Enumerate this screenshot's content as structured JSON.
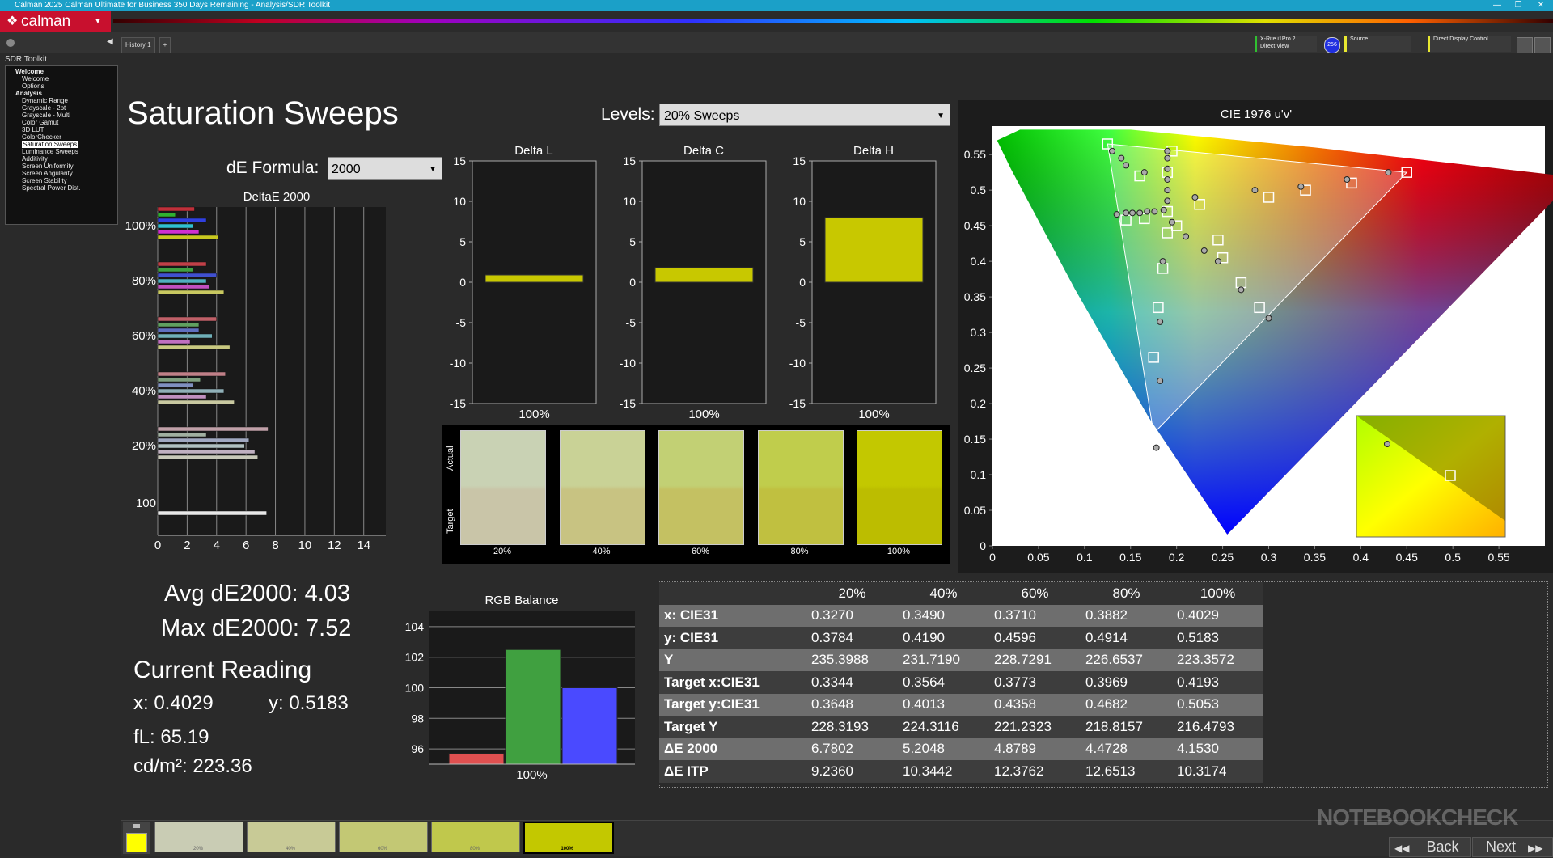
{
  "window": {
    "title": "Calman 2025 Calman Ultimate for Business 350 Days Remaining - Analysis/SDR Toolkit"
  },
  "app": {
    "logo": "calman"
  },
  "tabs": [
    "History 1"
  ],
  "devices": {
    "meter_line1": "X-Rite i1Pro 2",
    "meter_line2": "Direct View",
    "meter_badge": "256",
    "source": "Source",
    "display": "Direct Display Control"
  },
  "sidebar": {
    "header": "SDR Toolkit",
    "items": [
      {
        "label": "Welcome",
        "bold": true
      },
      {
        "label": "Welcome"
      },
      {
        "label": "Options"
      },
      {
        "label": "Analysis",
        "bold": true
      },
      {
        "label": "Dynamic Range"
      },
      {
        "label": "Grayscale - 2pt"
      },
      {
        "label": "Grayscale - Multi"
      },
      {
        "label": "Color Gamut"
      },
      {
        "label": "3D LUT"
      },
      {
        "label": "ColorChecker"
      },
      {
        "label": "Saturation Sweeps",
        "selected": true
      },
      {
        "label": "Luminance Sweeps"
      },
      {
        "label": "Additivity"
      },
      {
        "label": "Screen Uniformity"
      },
      {
        "label": "Screen Angularity"
      },
      {
        "label": "Screen Stability"
      },
      {
        "label": "Spectral Power Dist."
      }
    ]
  },
  "page": {
    "title": "Saturation Sweeps",
    "levels_label": "Levels:",
    "levels_value": "20% Sweeps",
    "formula_label": "dE Formula:",
    "formula_value": "2000",
    "avg": "Avg dE2000: 4.03",
    "max": "Max dE2000: 7.52",
    "current_reading": "Current Reading",
    "x_reading": "x: 0.4029",
    "y_reading": "y: 0.5183",
    "fl": "fL: 65.19",
    "cdm2": "cd/m²: 223.36"
  },
  "deltae_chart": {
    "title": "DeltaE 2000",
    "xticks": [
      "0",
      "2",
      "4",
      "6",
      "8",
      "10",
      "12",
      "14"
    ],
    "groups": [
      "100%",
      "80%",
      "60%",
      "40%",
      "20%",
      "100"
    ],
    "bars": [
      [
        {
          "v": 2.5,
          "c": "#c0303a"
        },
        {
          "v": 1.2,
          "c": "#30b030"
        },
        {
          "v": 3.3,
          "c": "#3040e0"
        },
        {
          "v": 2.4,
          "c": "#30c0d0"
        },
        {
          "v": 2.8,
          "c": "#d030d0"
        },
        {
          "v": 4.1,
          "c": "#c8c820"
        }
      ],
      [
        {
          "v": 3.3,
          "c": "#c04048"
        },
        {
          "v": 2.4,
          "c": "#40a040"
        },
        {
          "v": 4.0,
          "c": "#4050d0"
        },
        {
          "v": 3.3,
          "c": "#50b0c0"
        },
        {
          "v": 3.5,
          "c": "#c050c0"
        },
        {
          "v": 4.5,
          "c": "#c8c860"
        }
      ],
      [
        {
          "v": 4.0,
          "c": "#c06068"
        },
        {
          "v": 2.8,
          "c": "#60a060"
        },
        {
          "v": 2.8,
          "c": "#6070c0"
        },
        {
          "v": 3.7,
          "c": "#70b0b8"
        },
        {
          "v": 2.2,
          "c": "#c070c0"
        },
        {
          "v": 4.9,
          "c": "#c8c880"
        }
      ],
      [
        {
          "v": 4.6,
          "c": "#c08088"
        },
        {
          "v": 2.9,
          "c": "#80a080"
        },
        {
          "v": 2.4,
          "c": "#8090c0"
        },
        {
          "v": 4.5,
          "c": "#90b0b8"
        },
        {
          "v": 3.3,
          "c": "#c090c0"
        },
        {
          "v": 5.2,
          "c": "#c8c8a0"
        }
      ],
      [
        {
          "v": 7.5,
          "c": "#c0a0a8"
        },
        {
          "v": 3.3,
          "c": "#a0b0a0"
        },
        {
          "v": 6.2,
          "c": "#a0a8c0"
        },
        {
          "v": 5.9,
          "c": "#b0c0c0"
        },
        {
          "v": 6.6,
          "c": "#c0b0c0"
        },
        {
          "v": 6.8,
          "c": "#c8c8b8"
        }
      ],
      [
        {
          "v": 7.4,
          "c": "#e8e8e8"
        }
      ]
    ]
  },
  "delta_charts": [
    {
      "title": "Delta L",
      "value": 0.9,
      "label": "100%"
    },
    {
      "title": "Delta C",
      "value": 1.8,
      "label": "100%"
    },
    {
      "title": "Delta H",
      "value": 8.0,
      "label": "100%"
    }
  ],
  "delta_yticks": [
    "15",
    "10",
    "5",
    "0",
    "-5",
    "-10",
    "-15"
  ],
  "swatches": {
    "actual_label": "Actual",
    "target_label": "Target",
    "items": [
      {
        "label": "20%",
        "actual": "#c9d2b4",
        "target": "#c9c5a8"
      },
      {
        "label": "40%",
        "actual": "#c9d296",
        "target": "#c8c382"
      },
      {
        "label": "60%",
        "actual": "#c2d074",
        "target": "#c4c162"
      },
      {
        "label": "80%",
        "actual": "#c0cd4c",
        "target": "#c0c040"
      },
      {
        "label": "100%",
        "actual": "#c3c800",
        "target": "#bcbd00"
      }
    ]
  },
  "bottom_swatches": [
    {
      "label": "20%",
      "color": "#c9ccb4"
    },
    {
      "label": "40%",
      "color": "#c8ca96"
    },
    {
      "label": "60%",
      "color": "#c3c874"
    },
    {
      "label": "80%",
      "color": "#c0c84c"
    },
    {
      "label": "100%",
      "color": "#c3c800"
    }
  ],
  "rgb_balance": {
    "title": "RGB Balance",
    "yticks": [
      "104",
      "102",
      "100",
      "98",
      "96"
    ],
    "label": "100%",
    "values": {
      "red": 95.7,
      "green": 102.5,
      "blue": 100.0
    }
  },
  "cie": {
    "title": "CIE 1976 u'v'",
    "xticks": [
      "0",
      "0.05",
      "0.1",
      "0.15",
      "0.2",
      "0.25",
      "0.3",
      "0.35",
      "0.4",
      "0.45",
      "0.5",
      "0.55"
    ],
    "yticks": [
      "0.55",
      "0.5",
      "0.45",
      "0.4",
      "0.35",
      "0.3",
      "0.25",
      "0.2",
      "0.15",
      "0.1",
      "0.05",
      "0"
    ],
    "targets": [
      [
        0.125,
        0.565
      ],
      [
        0.195,
        0.555
      ],
      [
        0.19,
        0.525
      ],
      [
        0.16,
        0.52
      ],
      [
        0.145,
        0.458
      ],
      [
        0.165,
        0.46
      ],
      [
        0.19,
        0.47
      ],
      [
        0.2,
        0.45
      ],
      [
        0.19,
        0.44
      ],
      [
        0.185,
        0.39
      ],
      [
        0.18,
        0.335
      ],
      [
        0.175,
        0.265
      ],
      [
        0.17,
        0.16
      ],
      [
        0.225,
        0.48
      ],
      [
        0.245,
        0.43
      ],
      [
        0.25,
        0.405
      ],
      [
        0.27,
        0.37
      ],
      [
        0.29,
        0.335
      ],
      [
        0.3,
        0.49
      ],
      [
        0.34,
        0.5
      ],
      [
        0.39,
        0.51
      ],
      [
        0.45,
        0.525
      ]
    ],
    "measured": [
      [
        0.13,
        0.555
      ],
      [
        0.14,
        0.545
      ],
      [
        0.145,
        0.535
      ],
      [
        0.165,
        0.525
      ],
      [
        0.19,
        0.555
      ],
      [
        0.19,
        0.545
      ],
      [
        0.19,
        0.53
      ],
      [
        0.19,
        0.515
      ],
      [
        0.19,
        0.5
      ],
      [
        0.19,
        0.485
      ],
      [
        0.145,
        0.468
      ],
      [
        0.152,
        0.468
      ],
      [
        0.16,
        0.468
      ],
      [
        0.168,
        0.47
      ],
      [
        0.176,
        0.47
      ],
      [
        0.186,
        0.472
      ],
      [
        0.195,
        0.455
      ],
      [
        0.185,
        0.4
      ],
      [
        0.182,
        0.315
      ],
      [
        0.182,
        0.232
      ],
      [
        0.178,
        0.138
      ],
      [
        0.22,
        0.49
      ],
      [
        0.21,
        0.435
      ],
      [
        0.23,
        0.415
      ],
      [
        0.245,
        0.4
      ],
      [
        0.27,
        0.36
      ],
      [
        0.3,
        0.32
      ],
      [
        0.285,
        0.5
      ],
      [
        0.335,
        0.505
      ],
      [
        0.385,
        0.515
      ],
      [
        0.43,
        0.525
      ],
      [
        0.135,
        0.466
      ]
    ]
  },
  "data_table": {
    "columns": [
      "20%",
      "40%",
      "60%",
      "80%",
      "100%"
    ],
    "rows": [
      {
        "label": "x: CIE31",
        "values": [
          "0.3270",
          "0.3490",
          "0.3710",
          "0.3882",
          "0.4029"
        ]
      },
      {
        "label": "y: CIE31",
        "values": [
          "0.3784",
          "0.4190",
          "0.4596",
          "0.4914",
          "0.5183"
        ]
      },
      {
        "label": "Y",
        "values": [
          "235.3988",
          "231.7190",
          "228.7291",
          "226.6537",
          "223.3572"
        ]
      },
      {
        "label": "Target x:CIE31",
        "values": [
          "0.3344",
          "0.3564",
          "0.3773",
          "0.3969",
          "0.4193"
        ]
      },
      {
        "label": "Target y:CIE31",
        "values": [
          "0.3648",
          "0.4013",
          "0.4358",
          "0.4682",
          "0.5053"
        ]
      },
      {
        "label": "Target Y",
        "values": [
          "228.3193",
          "224.3116",
          "221.2323",
          "218.8157",
          "216.4793"
        ]
      },
      {
        "label": "ΔE 2000",
        "values": [
          "6.7802",
          "5.2048",
          "4.8789",
          "4.4728",
          "4.1530"
        ]
      },
      {
        "label": "ΔE ITP",
        "values": [
          "9.2360",
          "10.3442",
          "12.3762",
          "12.6513",
          "10.3174"
        ]
      }
    ]
  },
  "nav": {
    "back": "Back",
    "next": "Next"
  },
  "watermark": "NOTEBOOKCHECK",
  "current_color": "#ffff00"
}
